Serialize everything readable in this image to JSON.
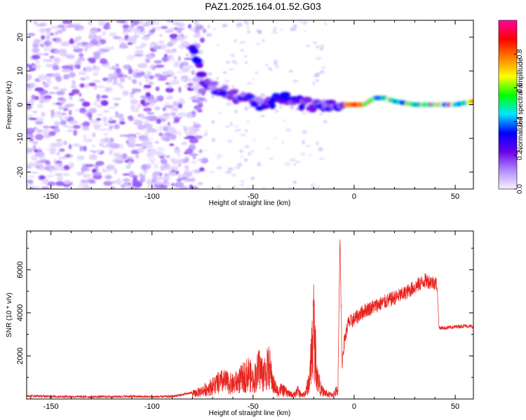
{
  "figure": {
    "title": "PAZ1.2025.164.01.52.G03"
  },
  "chart_data": [
    {
      "type": "heatmap",
      "title": "",
      "xlabel": "Height of straight line (km)",
      "ylabel": "Frequency (Hz)",
      "xlim": [
        -162,
        59
      ],
      "ylim": [
        -25,
        25
      ],
      "xticks": [
        -150,
        -100,
        -50,
        0,
        50
      ],
      "yticks": [
        -20,
        -10,
        0,
        10,
        20
      ],
      "colorbar": {
        "label": "Normalized spectral amplitude",
        "range": [
          0.0,
          1.0
        ],
        "ticks": [
          0.0,
          0.2,
          0.4,
          0.6,
          0.8
        ],
        "tick_labels": [
          "0.0",
          "0.2",
          "0.4",
          "0.6",
          "0.8"
        ],
        "colormap": [
          "#f7f3ff",
          "#b089ff",
          "#6a00e8",
          "#0000ff",
          "#00e5ff",
          "#00ff00",
          "#ffff00",
          "#ff8000",
          "#ff0000",
          "#ff00a0"
        ]
      },
      "ridge": {
        "description_points_x": [
          -80,
          -75,
          -70,
          -65,
          -60,
          -55,
          -50,
          -45,
          -40,
          -35,
          -30,
          -25,
          -20,
          -15,
          -10,
          -5,
          0,
          5,
          10,
          15,
          20,
          30,
          40,
          50,
          59
        ],
        "description_points_y": [
          18,
          8,
          5,
          4,
          3,
          2,
          1,
          0,
          1,
          2,
          1,
          0,
          0,
          0,
          0,
          0,
          0,
          0,
          2,
          2,
          1,
          0,
          0,
          0,
          1
        ]
      }
    },
    {
      "type": "line",
      "title": "",
      "xlabel": "Height of straight line (km)",
      "ylabel": "SNR (10 * v/v)",
      "xlim": [
        -162,
        59
      ],
      "ylim": [
        0,
        7800
      ],
      "xticks": [
        -150,
        -100,
        -50,
        0,
        50
      ],
      "yticks": [
        2000,
        4000,
        6000
      ],
      "series": [
        {
          "color": "#e8231e",
          "x": [
            -162,
            -150,
            -140,
            -130,
            -120,
            -110,
            -100,
            -90,
            -85,
            -80,
            -75,
            -70,
            -65,
            -60,
            -55,
            -52,
            -50,
            -47,
            -45,
            -42,
            -40,
            -38,
            -36,
            -34,
            -32,
            -30,
            -28,
            -26,
            -24,
            -22,
            -20,
            -19,
            -18,
            -16,
            -14,
            -12,
            -10,
            -8,
            -7,
            -6,
            -5,
            -3,
            0,
            5,
            10,
            15,
            20,
            25,
            30,
            35,
            40,
            41,
            42,
            45,
            50,
            55,
            59
          ],
          "y": [
            150,
            120,
            110,
            100,
            110,
            120,
            100,
            120,
            200,
            300,
            500,
            800,
            1100,
            900,
            1300,
            1600,
            1100,
            1900,
            1500,
            2000,
            900,
            500,
            600,
            450,
            300,
            250,
            500,
            200,
            400,
            1200,
            4600,
            2500,
            1200,
            500,
            350,
            250,
            300,
            600,
            7700,
            1600,
            2600,
            3500,
            3700,
            4100,
            4300,
            4500,
            4700,
            4900,
            5200,
            5500,
            5400,
            5300,
            3300,
            3300,
            3350,
            3400,
            3350
          ]
        }
      ]
    }
  ]
}
